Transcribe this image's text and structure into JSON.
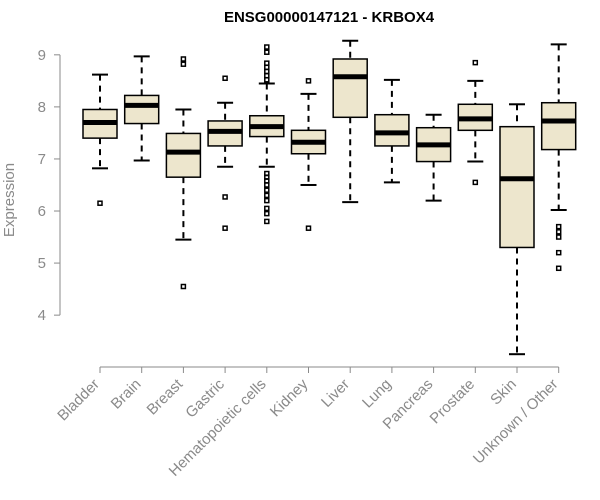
{
  "chart_data": {
    "type": "boxplot",
    "title": "ENSG00000147121 - KRBOX4",
    "xlabel": "",
    "ylabel": "Expression",
    "ylim": [
      3.1,
      9.4
    ],
    "yticks": [
      4,
      5,
      6,
      7,
      8,
      9
    ],
    "categories": [
      "Bladder",
      "Brain",
      "Breast",
      "Gastric",
      "Hematopoietic cells",
      "Kidney",
      "Liver",
      "Lung",
      "Pancreas",
      "Prostate",
      "Skin",
      "Unknown / Other"
    ],
    "boxes": [
      {
        "low": 6.82,
        "q1": 7.4,
        "median": 7.7,
        "q3": 7.95,
        "high": 8.62,
        "outliers": [
          6.15
        ]
      },
      {
        "low": 6.97,
        "q1": 7.68,
        "median": 8.03,
        "q3": 8.22,
        "high": 8.97,
        "outliers": []
      },
      {
        "low": 5.45,
        "q1": 6.65,
        "median": 7.13,
        "q3": 7.49,
        "high": 7.95,
        "outliers": [
          4.55,
          8.82,
          8.92
        ]
      },
      {
        "low": 6.85,
        "q1": 7.25,
        "median": 7.53,
        "q3": 7.73,
        "high": 8.08,
        "outliers": [
          5.67,
          6.27,
          8.55
        ]
      },
      {
        "low": 6.85,
        "q1": 7.43,
        "median": 7.62,
        "q3": 7.83,
        "high": 8.45,
        "outliers": [
          5.8,
          5.95,
          6.05,
          6.2,
          6.3,
          6.4,
          6.5,
          6.58,
          6.65,
          6.72,
          8.52,
          8.6,
          8.68,
          8.76,
          8.84,
          9.05,
          9.15
        ]
      },
      {
        "low": 6.5,
        "q1": 7.1,
        "median": 7.32,
        "q3": 7.55,
        "high": 8.25,
        "outliers": [
          5.67,
          8.5
        ]
      },
      {
        "low": 6.17,
        "q1": 7.8,
        "median": 8.58,
        "q3": 8.92,
        "high": 9.27,
        "outliers": []
      },
      {
        "low": 6.55,
        "q1": 7.25,
        "median": 7.5,
        "q3": 7.85,
        "high": 8.52,
        "outliers": []
      },
      {
        "low": 6.2,
        "q1": 6.95,
        "median": 7.27,
        "q3": 7.6,
        "high": 7.85,
        "outliers": []
      },
      {
        "low": 6.95,
        "q1": 7.55,
        "median": 7.77,
        "q3": 8.05,
        "high": 8.5,
        "outliers": [
          6.55,
          8.85
        ]
      },
      {
        "low": 3.25,
        "q1": 5.3,
        "median": 6.62,
        "q3": 7.62,
        "high": 8.05,
        "outliers": []
      },
      {
        "low": 6.02,
        "q1": 7.18,
        "median": 7.73,
        "q3": 8.08,
        "high": 9.2,
        "outliers": [
          4.9,
          5.2,
          5.5,
          5.6,
          5.7
        ]
      }
    ]
  }
}
